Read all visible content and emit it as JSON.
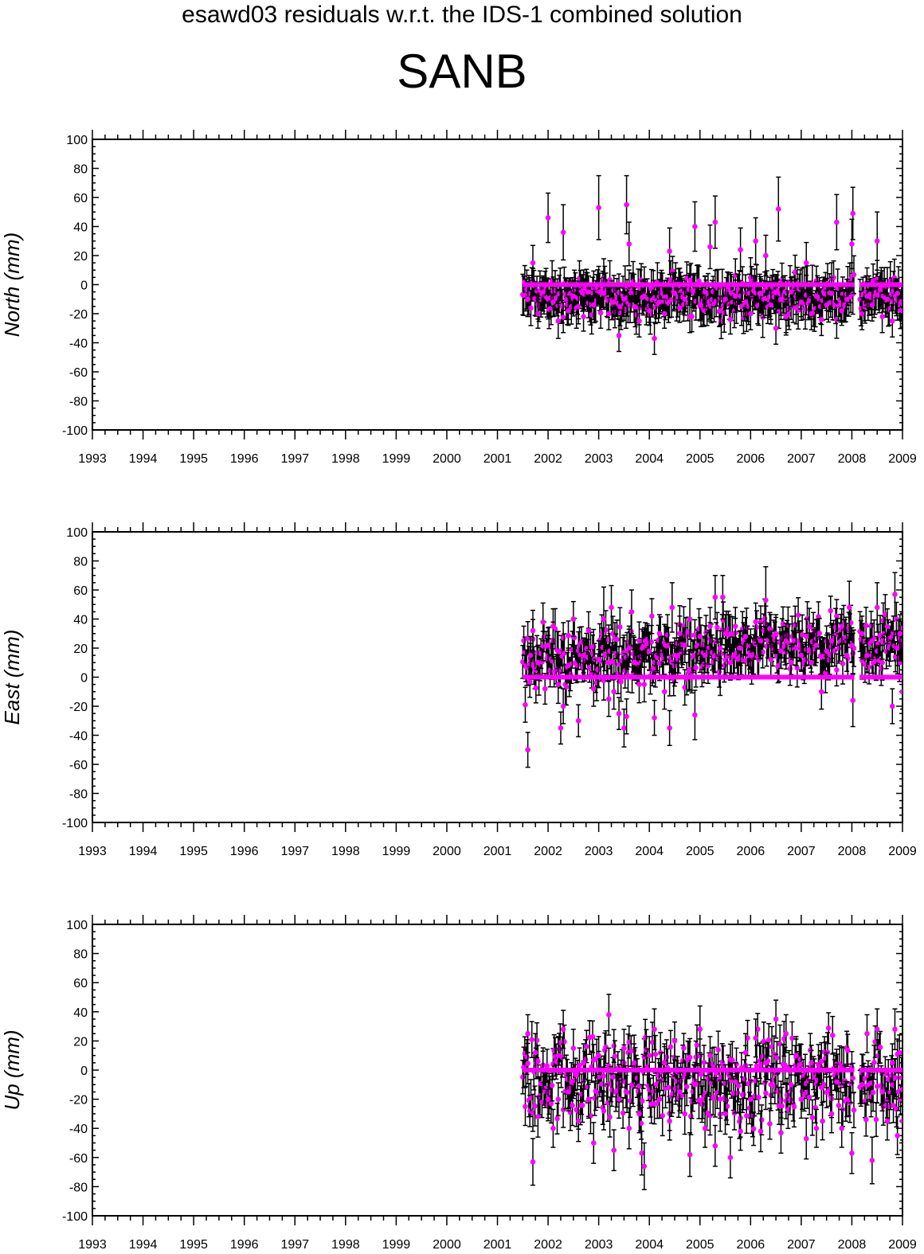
{
  "header": {
    "title": "esawd03 residuals w.r.t. the IDS-1 combined solution",
    "station": "SANB"
  },
  "style": {
    "marker_color": "#ff00ff",
    "errorbar_color": "#000000",
    "axis_color": "#000000"
  },
  "chart_data": [
    {
      "type": "scatter",
      "ylabel": "North (mm)",
      "xlim": [
        1993,
        2009
      ],
      "ylim": [
        -100,
        100
      ],
      "x_ticks": [
        "1993",
        "1994",
        "1995",
        "1996",
        "1997",
        "1998",
        "1999",
        "2000",
        "2001",
        "2002",
        "2003",
        "2004",
        "2005",
        "2006",
        "2007",
        "2008",
        "2009"
      ],
      "y_ticks": [
        "100",
        "80",
        "60",
        "40",
        "20",
        "0",
        "-20",
        "-40",
        "-60",
        "-80",
        "-100"
      ],
      "grid": false,
      "baseline": 0,
      "data_range": [
        2001.5,
        2009.0
      ],
      "data_gap": [
        2008.05,
        2008.15
      ],
      "points": [
        [
          2001.6,
          -10,
          12
        ],
        [
          2001.7,
          15,
          12
        ],
        [
          2001.8,
          -20,
          10
        ],
        [
          2001.9,
          -5,
          11
        ],
        [
          2002.0,
          46,
          17
        ],
        [
          2002.1,
          -12,
          10
        ],
        [
          2002.2,
          -25,
          12
        ],
        [
          2002.3,
          36,
          19
        ],
        [
          2002.4,
          -18,
          10
        ],
        [
          2002.5,
          -8,
          11
        ],
        [
          2002.6,
          -15,
          12
        ],
        [
          2002.7,
          -22,
          10
        ],
        [
          2002.8,
          -5,
          11
        ],
        [
          2002.9,
          -14,
          10
        ],
        [
          2003.0,
          53,
          22
        ],
        [
          2003.1,
          -6,
          11
        ],
        [
          2003.2,
          -20,
          11
        ],
        [
          2003.3,
          -12,
          10
        ],
        [
          2003.4,
          -35,
          11
        ],
        [
          2003.5,
          -10,
          10
        ],
        [
          2003.55,
          55,
          20
        ],
        [
          2003.6,
          28,
          15
        ],
        [
          2003.7,
          -15,
          11
        ],
        [
          2003.8,
          -25,
          11
        ],
        [
          2003.9,
          -8,
          10
        ],
        [
          2004.0,
          -18,
          10
        ],
        [
          2004.1,
          -37,
          11
        ],
        [
          2004.2,
          -12,
          11
        ],
        [
          2004.3,
          -20,
          10
        ],
        [
          2004.4,
          23,
          16
        ],
        [
          2004.5,
          -6,
          11
        ],
        [
          2004.6,
          -16,
          10
        ],
        [
          2004.7,
          -10,
          11
        ],
        [
          2004.8,
          -22,
          11
        ],
        [
          2004.9,
          40,
          17
        ],
        [
          2005.0,
          -14,
          10
        ],
        [
          2005.1,
          -5,
          11
        ],
        [
          2005.2,
          26,
          15
        ],
        [
          2005.3,
          43,
          18
        ],
        [
          2005.4,
          -18,
          10
        ],
        [
          2005.5,
          -10,
          11
        ],
        [
          2005.6,
          -24,
          10
        ],
        [
          2005.7,
          -8,
          11
        ],
        [
          2005.8,
          24,
          15
        ],
        [
          2005.9,
          -12,
          10
        ],
        [
          2006.0,
          -20,
          11
        ],
        [
          2006.1,
          30,
          16
        ],
        [
          2006.2,
          -6,
          10
        ],
        [
          2006.3,
          20,
          14
        ],
        [
          2006.4,
          -14,
          10
        ],
        [
          2006.5,
          -30,
          11
        ],
        [
          2006.55,
          52,
          22
        ],
        [
          2006.6,
          -10,
          11
        ],
        [
          2006.7,
          -22,
          11
        ],
        [
          2006.8,
          -5,
          10
        ],
        [
          2006.9,
          -16,
          11
        ],
        [
          2007.0,
          -12,
          10
        ],
        [
          2007.1,
          15,
          14
        ],
        [
          2007.2,
          -20,
          11
        ],
        [
          2007.3,
          -8,
          10
        ],
        [
          2007.4,
          -24,
          11
        ],
        [
          2007.5,
          -14,
          10
        ],
        [
          2007.6,
          -6,
          11
        ],
        [
          2007.7,
          43,
          19
        ],
        [
          2007.8,
          -18,
          10
        ],
        [
          2007.9,
          -10,
          11
        ],
        [
          2008.0,
          28,
          17
        ],
        [
          2008.02,
          49,
          18
        ],
        [
          2008.2,
          -20,
          11
        ],
        [
          2008.3,
          -8,
          10
        ],
        [
          2008.4,
          -14,
          11
        ],
        [
          2008.5,
          30,
          20
        ],
        [
          2008.6,
          -22,
          11
        ],
        [
          2008.7,
          -10,
          10
        ],
        [
          2008.8,
          -25,
          11
        ],
        [
          2008.9,
          -6,
          10
        ],
        [
          2009.0,
          -18,
          11
        ]
      ]
    },
    {
      "type": "scatter",
      "ylabel": "East (mm)",
      "xlim": [
        1993,
        2009
      ],
      "ylim": [
        -100,
        100
      ],
      "x_ticks": [
        "1993",
        "1994",
        "1995",
        "1996",
        "1997",
        "1998",
        "1999",
        "2000",
        "2001",
        "2002",
        "2003",
        "2004",
        "2005",
        "2006",
        "2007",
        "2008",
        "2009"
      ],
      "y_ticks": [
        "100",
        "80",
        "60",
        "40",
        "20",
        "0",
        "-20",
        "-40",
        "-60",
        "-80",
        "-100"
      ],
      "grid": false,
      "baseline": 0,
      "data_range": [
        2001.5,
        2009.0
      ],
      "data_gap": [
        2008.05,
        2008.15
      ],
      "points": [
        [
          2001.55,
          -19,
          12
        ],
        [
          2001.6,
          -50,
          12
        ],
        [
          2001.65,
          15,
          13
        ],
        [
          2001.7,
          32,
          14
        ],
        [
          2001.8,
          10,
          12
        ],
        [
          2001.9,
          38,
          13
        ],
        [
          2002.0,
          22,
          12
        ],
        [
          2002.1,
          35,
          12
        ],
        [
          2002.2,
          -5,
          13
        ],
        [
          2002.25,
          -35,
          11
        ],
        [
          2002.3,
          -20,
          12
        ],
        [
          2002.4,
          8,
          12
        ],
        [
          2002.5,
          40,
          12
        ],
        [
          2002.6,
          -30,
          11
        ],
        [
          2002.7,
          15,
          12
        ],
        [
          2002.8,
          32,
          13
        ],
        [
          2002.9,
          -8,
          12
        ],
        [
          2003.0,
          12,
          13
        ],
        [
          2003.1,
          40,
          22
        ],
        [
          2003.2,
          -15,
          12
        ],
        [
          2003.25,
          48,
          15
        ],
        [
          2003.3,
          -10,
          12
        ],
        [
          2003.4,
          -25,
          11
        ],
        [
          2003.5,
          -35,
          13
        ],
        [
          2003.55,
          -27,
          12
        ],
        [
          2003.6,
          20,
          13
        ],
        [
          2003.65,
          45,
          15
        ],
        [
          2003.7,
          10,
          12
        ],
        [
          2003.8,
          25,
          13
        ],
        [
          2003.9,
          -5,
          12
        ],
        [
          2004.0,
          18,
          13
        ],
        [
          2004.05,
          42,
          12
        ],
        [
          2004.1,
          -28,
          12
        ],
        [
          2004.2,
          30,
          13
        ],
        [
          2004.3,
          -10,
          12
        ],
        [
          2004.4,
          -35,
          12
        ],
        [
          2004.45,
          48,
          17
        ],
        [
          2004.5,
          15,
          12
        ],
        [
          2004.6,
          30,
          12
        ],
        [
          2004.7,
          22,
          12
        ],
        [
          2004.8,
          40,
          14
        ],
        [
          2004.9,
          -26,
          17
        ],
        [
          2005.0,
          28,
          13
        ],
        [
          2005.1,
          15,
          12
        ],
        [
          2005.2,
          35,
          13
        ],
        [
          2005.3,
          55,
          15
        ],
        [
          2005.4,
          20,
          12
        ],
        [
          2005.45,
          55,
          15
        ],
        [
          2005.5,
          30,
          13
        ],
        [
          2005.6,
          10,
          12
        ],
        [
          2005.7,
          35,
          13
        ],
        [
          2005.8,
          20,
          12
        ],
        [
          2005.9,
          28,
          13
        ],
        [
          2006.0,
          15,
          12
        ],
        [
          2006.1,
          38,
          13
        ],
        [
          2006.2,
          25,
          12
        ],
        [
          2006.3,
          53,
          23
        ],
        [
          2006.4,
          12,
          12
        ],
        [
          2006.5,
          30,
          13
        ],
        [
          2006.6,
          18,
          12
        ],
        [
          2006.7,
          25,
          12
        ],
        [
          2006.8,
          10,
          11
        ],
        [
          2006.9,
          20,
          12
        ],
        [
          2007.0,
          15,
          11
        ],
        [
          2007.1,
          28,
          12
        ],
        [
          2007.2,
          10,
          11
        ],
        [
          2007.3,
          22,
          12
        ],
        [
          2007.4,
          -10,
          12
        ],
        [
          2007.5,
          18,
          11
        ],
        [
          2007.6,
          25,
          12
        ],
        [
          2007.7,
          5,
          11
        ],
        [
          2007.8,
          35,
          12
        ],
        [
          2007.9,
          15,
          11
        ],
        [
          2007.95,
          48,
          18
        ],
        [
          2008.0,
          22,
          12
        ],
        [
          2008.02,
          -16,
          18
        ],
        [
          2008.2,
          30,
          12
        ],
        [
          2008.3,
          15,
          12
        ],
        [
          2008.4,
          25,
          12
        ],
        [
          2008.5,
          48,
          17
        ],
        [
          2008.6,
          10,
          12
        ],
        [
          2008.7,
          35,
          12
        ],
        [
          2008.8,
          -20,
          12
        ],
        [
          2008.85,
          57,
          15
        ],
        [
          2008.9,
          20,
          12
        ],
        [
          2008.95,
          30,
          13
        ],
        [
          2009.0,
          -10,
          12
        ]
      ]
    },
    {
      "type": "scatter",
      "ylabel": "Up (mm)",
      "xlim": [
        1993,
        2009
      ],
      "ylim": [
        -100,
        100
      ],
      "x_ticks": [
        "1993",
        "1994",
        "1995",
        "1996",
        "1997",
        "1998",
        "1999",
        "2000",
        "2001",
        "2002",
        "2003",
        "2004",
        "2005",
        "2006",
        "2007",
        "2008",
        "2009"
      ],
      "y_ticks": [
        "100",
        "80",
        "60",
        "40",
        "20",
        "0",
        "-20",
        "-40",
        "-60",
        "-80",
        "-100"
      ],
      "grid": false,
      "baseline": 0,
      "data_range": [
        2001.5,
        2009.0
      ],
      "data_gap": [
        2008.05,
        2008.15
      ],
      "points": [
        [
          2001.55,
          -25,
          13
        ],
        [
          2001.6,
          25,
          13
        ],
        [
          2001.7,
          -63,
          16
        ],
        [
          2001.75,
          12,
          13
        ],
        [
          2001.8,
          -32,
          14
        ],
        [
          2001.9,
          0,
          13
        ],
        [
          2002.0,
          -20,
          13
        ],
        [
          2002.1,
          -40,
          13
        ],
        [
          2002.2,
          10,
          13
        ],
        [
          2002.3,
          28,
          13
        ],
        [
          2002.4,
          -15,
          13
        ],
        [
          2002.5,
          15,
          13
        ],
        [
          2002.6,
          -35,
          14
        ],
        [
          2002.7,
          5,
          13
        ],
        [
          2002.8,
          -20,
          13
        ],
        [
          2002.9,
          -50,
          14
        ],
        [
          2003.0,
          10,
          13
        ],
        [
          2003.1,
          -28,
          13
        ],
        [
          2003.2,
          38,
          14
        ],
        [
          2003.3,
          -55,
          14
        ],
        [
          2003.4,
          -20,
          13
        ],
        [
          2003.5,
          15,
          13
        ],
        [
          2003.6,
          -40,
          14
        ],
        [
          2003.7,
          5,
          13
        ],
        [
          2003.8,
          -30,
          13
        ],
        [
          2003.85,
          -57,
          15
        ],
        [
          2003.9,
          -66,
          16
        ],
        [
          2004.0,
          10,
          13
        ],
        [
          2004.1,
          28,
          14
        ],
        [
          2004.2,
          -20,
          13
        ],
        [
          2004.3,
          5,
          13
        ],
        [
          2004.4,
          -35,
          13
        ],
        [
          2004.5,
          20,
          13
        ],
        [
          2004.6,
          -15,
          13
        ],
        [
          2004.7,
          -30,
          14
        ],
        [
          2004.8,
          -58,
          15
        ],
        [
          2004.9,
          -10,
          13
        ],
        [
          2005.0,
          28,
          16
        ],
        [
          2005.1,
          -40,
          13
        ],
        [
          2005.2,
          10,
          13
        ],
        [
          2005.3,
          -52,
          14
        ],
        [
          2005.4,
          -20,
          13
        ],
        [
          2005.5,
          -30,
          14
        ],
        [
          2005.6,
          -60,
          14
        ],
        [
          2005.7,
          -8,
          13
        ],
        [
          2005.8,
          -42,
          13
        ],
        [
          2005.9,
          12,
          13
        ],
        [
          2006.0,
          -20,
          13
        ],
        [
          2006.1,
          22,
          13
        ],
        [
          2006.2,
          -42,
          14
        ],
        [
          2006.3,
          5,
          13
        ],
        [
          2006.4,
          -10,
          13
        ],
        [
          2006.5,
          35,
          13
        ],
        [
          2006.6,
          -43,
          14
        ],
        [
          2006.7,
          25,
          13
        ],
        [
          2006.8,
          -10,
          13
        ],
        [
          2006.9,
          10,
          13
        ],
        [
          2007.0,
          -20,
          13
        ],
        [
          2007.1,
          -47,
          14
        ],
        [
          2007.2,
          5,
          12
        ],
        [
          2007.3,
          -40,
          13
        ],
        [
          2007.4,
          -12,
          12
        ],
        [
          2007.5,
          0,
          12
        ],
        [
          2007.6,
          -30,
          13
        ],
        [
          2007.7,
          -8,
          12
        ],
        [
          2007.8,
          -40,
          13
        ],
        [
          2007.9,
          -20,
          12
        ],
        [
          2008.0,
          -57,
          14
        ],
        [
          2008.2,
          -10,
          13
        ],
        [
          2008.3,
          25,
          13
        ],
        [
          2008.4,
          -62,
          16
        ],
        [
          2008.5,
          28,
          14
        ],
        [
          2008.6,
          -15,
          13
        ],
        [
          2008.7,
          -35,
          13
        ],
        [
          2008.8,
          5,
          13
        ],
        [
          2008.85,
          28,
          14
        ],
        [
          2008.9,
          -45,
          13
        ],
        [
          2009.0,
          -35,
          13
        ]
      ]
    }
  ]
}
